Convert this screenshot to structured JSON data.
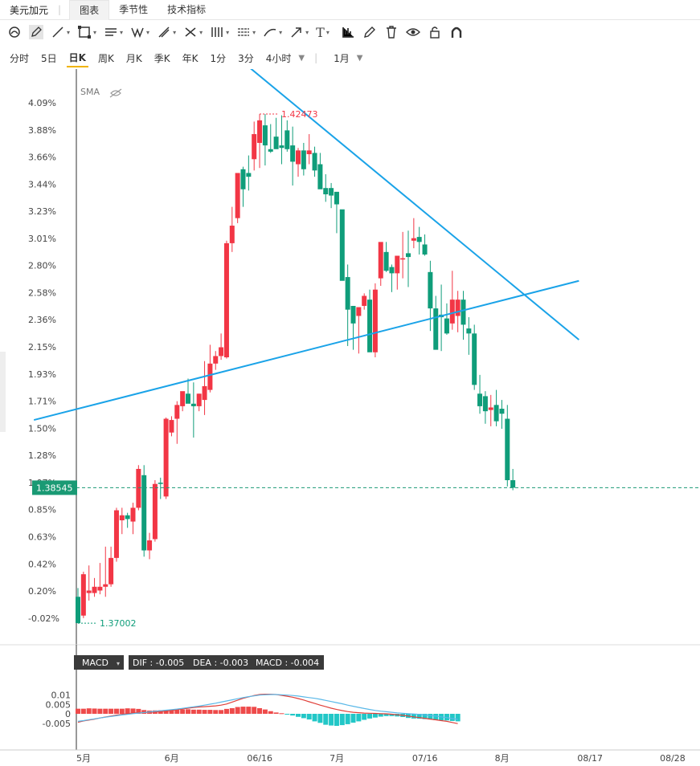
{
  "tabs": {
    "symbol": "美元加元",
    "items": [
      "图表",
      "季节性",
      "技术指标"
    ],
    "active": 0
  },
  "toolbar": {
    "tools": [
      "magnet-icon",
      "pen-icon",
      "line-icon",
      "rectangle-icon",
      "parallel-lines-icon",
      "pattern-icon",
      "fib-icon",
      "measure-icon",
      "gann-icon",
      "channel-icon",
      "brush-icon",
      "arrow-icon",
      "text-icon",
      "chart-type-icon",
      "edit-icon",
      "trash-icon",
      "eye-icon",
      "lock-icon",
      "magnet-u-icon"
    ],
    "text_label": "T"
  },
  "periods": {
    "items": [
      "分时",
      "5日",
      "日K",
      "周K",
      "月K",
      "季K",
      "年K",
      "1分",
      "3分",
      "4小时"
    ],
    "active": "日K",
    "range": "1月"
  },
  "indicators": {
    "sma_label": "SMA"
  },
  "price_panel": {
    "current_price": "1.38545",
    "high_label": "1.42473",
    "low_label": "1.37002",
    "colors": {
      "up": "#f23645",
      "down": "#0f9d7a",
      "line": "#1aa3e8",
      "price_tag": "#1a9a74"
    }
  },
  "macd_panel": {
    "name": "MACD",
    "dif": "DIF : -0.005",
    "dea": "DEA : -0.003",
    "macd": "MACD : -0.004",
    "yticks": [
      "0.01",
      "0.005",
      "0",
      "-0.005"
    ]
  },
  "chart_data": {
    "type": "candlestick",
    "yaxis_ticks": [
      "4.09%",
      "3.88%",
      "3.66%",
      "3.44%",
      "3.23%",
      "3.01%",
      "2.80%",
      "2.58%",
      "2.36%",
      "2.15%",
      "1.93%",
      "1.71%",
      "1.50%",
      "1.28%",
      "1.07%",
      "0.85%",
      "0.63%",
      "0.42%",
      "0.20%",
      "-0.02%"
    ],
    "yrange_pct": [
      -0.02,
      4.09
    ],
    "xaxis_labels": [
      "5月",
      "6月",
      "06/16",
      "7月",
      "07/16",
      "8月",
      "08/17",
      "08/28"
    ],
    "candles_pct": [
      [
        0.15,
        0.22,
        -0.06,
        -0.06
      ],
      [
        0.0,
        0.35,
        -0.02,
        0.33
      ],
      [
        0.18,
        0.4,
        0.12,
        0.2
      ],
      [
        0.18,
        0.3,
        0.15,
        0.23
      ],
      [
        0.2,
        0.42,
        0.17,
        0.23
      ],
      [
        0.23,
        0.55,
        0.15,
        0.25
      ],
      [
        0.25,
        0.55,
        0.23,
        0.46
      ],
      [
        0.46,
        0.86,
        0.43,
        0.84
      ],
      [
        0.76,
        0.86,
        0.65,
        0.8
      ],
      [
        0.8,
        0.82,
        0.7,
        0.77
      ],
      [
        0.75,
        0.9,
        0.65,
        0.86
      ],
      [
        0.86,
        1.2,
        0.84,
        1.17
      ],
      [
        1.12,
        1.2,
        0.47,
        0.52
      ],
      [
        0.52,
        0.66,
        0.45,
        0.6
      ],
      [
        0.61,
        1.08,
        0.59,
        1.05
      ],
      [
        1.06,
        1.1,
        0.93,
        1.05
      ],
      [
        0.95,
        1.58,
        0.93,
        1.57
      ],
      [
        1.46,
        1.59,
        1.43,
        1.56
      ],
      [
        1.57,
        1.71,
        1.37,
        1.68
      ],
      [
        1.67,
        1.72,
        1.63,
        1.79
      ],
      [
        1.77,
        1.89,
        1.7,
        1.69
      ],
      [
        1.69,
        1.86,
        1.42,
        1.67
      ],
      [
        1.67,
        1.77,
        1.63,
        1.77
      ],
      [
        1.72,
        2.03,
        1.6,
        1.83
      ],
      [
        1.8,
        2.16,
        1.78,
        2.01
      ],
      [
        2.01,
        2.11,
        1.96,
        2.07
      ],
      [
        2.07,
        2.25,
        2.04,
        2.14
      ],
      [
        2.06,
        2.99,
        2.05,
        2.97
      ],
      [
        2.97,
        3.26,
        2.9,
        3.11
      ],
      [
        3.17,
        3.48,
        3.13,
        3.53
      ],
      [
        3.56,
        3.58,
        3.26,
        3.4
      ],
      [
        3.53,
        3.67,
        3.39,
        3.5
      ],
      [
        3.64,
        3.94,
        3.55,
        3.84
      ],
      [
        3.77,
        4.0,
        3.57,
        3.95
      ],
      [
        3.91,
        4.0,
        3.59,
        3.75
      ],
      [
        3.72,
        3.92,
        3.69,
        3.7
      ],
      [
        3.82,
        3.97,
        3.75,
        3.72
      ],
      [
        3.75,
        3.99,
        3.6,
        3.73
      ],
      [
        3.87,
        3.95,
        3.7,
        3.72
      ],
      [
        3.75,
        3.9,
        3.43,
        3.62
      ],
      [
        3.6,
        3.73,
        3.5,
        3.71
      ],
      [
        3.71,
        3.77,
        3.51,
        3.56
      ],
      [
        3.68,
        3.84,
        3.6,
        3.71
      ],
      [
        3.69,
        3.74,
        3.5,
        3.55
      ],
      [
        3.6,
        3.69,
        3.51,
        3.4
      ],
      [
        3.41,
        3.52,
        3.3,
        3.36
      ],
      [
        3.41,
        3.45,
        3.25,
        3.35
      ],
      [
        3.38,
        3.35,
        3.05,
        3.28
      ],
      [
        3.24,
        3.18,
        2.85,
        2.67
      ],
      [
        2.7,
        2.8,
        2.15,
        2.44
      ],
      [
        2.47,
        2.43,
        2.12,
        2.33
      ],
      [
        2.39,
        2.39,
        2.09,
        2.46
      ],
      [
        2.47,
        2.57,
        2.44,
        2.55
      ],
      [
        2.52,
        2.6,
        2.11,
        2.1
      ],
      [
        2.1,
        2.65,
        2.06,
        2.6
      ],
      [
        2.69,
        2.85,
        2.63,
        2.98
      ],
      [
        2.9,
        2.98,
        2.74,
        2.75
      ],
      [
        2.78,
        2.8,
        2.58,
        2.73
      ],
      [
        2.73,
        2.85,
        2.6,
        2.87
      ],
      [
        2.84,
        3.06,
        2.69,
        2.85
      ],
      [
        2.89,
        3.07,
        2.62,
        2.86
      ],
      [
        2.99,
        3.17,
        2.93,
        3.01
      ],
      [
        3.02,
        3.1,
        2.88,
        2.98
      ],
      [
        2.96,
        3.04,
        2.87,
        2.88
      ],
      [
        2.74,
        2.83,
        2.27,
        2.45
      ],
      [
        2.45,
        2.55,
        2.22,
        2.12
      ],
      [
        2.4,
        2.64,
        2.11,
        2.38
      ],
      [
        2.37,
        2.49,
        2.24,
        2.25
      ],
      [
        2.33,
        2.75,
        2.28,
        2.52
      ],
      [
        2.39,
        2.59,
        2.26,
        2.52
      ],
      [
        2.52,
        2.59,
        2.2,
        2.32
      ],
      [
        2.29,
        2.38,
        2.08,
        2.25
      ],
      [
        2.25,
        2.32,
        1.8,
        1.84
      ],
      [
        1.77,
        1.92,
        1.61,
        1.67
      ],
      [
        1.75,
        1.79,
        1.53,
        1.63
      ],
      [
        1.64,
        1.76,
        1.51,
        1.66
      ],
      [
        1.68,
        1.8,
        1.51,
        1.55
      ],
      [
        1.65,
        1.72,
        1.49,
        1.61
      ],
      [
        1.57,
        1.68,
        1.03,
        1.08
      ],
      [
        1.08,
        1.17,
        1.0,
        1.02
      ]
    ],
    "trendlines": [
      {
        "name": "descending-resistance",
        "from": {
          "candle": 21,
          "pct": 4.74
        },
        "to": {
          "candle": 91,
          "pct": 2.2
        }
      },
      {
        "name": "ascending-support",
        "from": {
          "candle": -8,
          "pct": 1.56
        },
        "to": {
          "candle": 91,
          "pct": 2.67
        }
      }
    ],
    "macd_hist": [
      0.0027,
      0.0027,
      0.0029,
      0.0028,
      0.0027,
      0.0027,
      0.0027,
      0.0027,
      0.0027,
      0.0029,
      0.0028,
      0.0026,
      0.002,
      0.0017,
      0.0018,
      0.0019,
      0.002,
      0.0022,
      0.0023,
      0.0023,
      0.0024,
      0.0022,
      0.0022,
      0.0021,
      0.0021,
      0.002,
      0.002,
      0.0026,
      0.003,
      0.0036,
      0.0038,
      0.0038,
      0.0037,
      0.003,
      0.0023,
      0.0014,
      0.0007,
      0.0003,
      -0.0002,
      -0.0009,
      -0.0016,
      -0.0023,
      -0.003,
      -0.004,
      -0.0048,
      -0.0058,
      -0.0062,
      -0.0064,
      -0.006,
      -0.0055,
      -0.0047,
      -0.004,
      -0.0032,
      -0.0025,
      -0.002,
      -0.0015,
      -0.0012,
      -0.0012,
      -0.0014,
      -0.0017,
      -0.0022,
      -0.0025,
      -0.0026,
      -0.0028,
      -0.003,
      -0.0034,
      -0.0034,
      -0.0035,
      -0.0038,
      -0.004
    ],
    "macd_dif": [
      -0.0045,
      -0.0038,
      -0.0033,
      -0.0028,
      -0.0022,
      -0.0017,
      -0.0012,
      -0.0007,
      -0.0003,
      0.0001,
      0.0004,
      0.0006,
      0.0007,
      0.0008,
      0.001,
      0.0012,
      0.0014,
      0.0018,
      0.0022,
      0.0026,
      0.003,
      0.0033,
      0.0036,
      0.0038,
      0.004,
      0.0042,
      0.0046,
      0.0052,
      0.0062,
      0.0072,
      0.0082,
      0.009,
      0.0097,
      0.0102,
      0.0104,
      0.0104,
      0.0102,
      0.0098,
      0.0093,
      0.0088,
      0.0081,
      0.0073,
      0.0064,
      0.0055,
      0.0046,
      0.0038,
      0.003,
      0.0023,
      0.0017,
      0.0012,
      0.0008,
      0.0006,
      0.0004,
      0.0003,
      0.0002,
      0.0001,
      0.0,
      -0.0002,
      -0.0005,
      -0.0008,
      -0.0012,
      -0.0016,
      -0.002,
      -0.0024,
      -0.0028,
      -0.0032,
      -0.0036,
      -0.004,
      -0.0046,
      -0.0052
    ],
    "macd_dea": [
      -0.004,
      -0.0036,
      -0.0031,
      -0.0027,
      -0.0022,
      -0.0018,
      -0.0014,
      -0.001,
      -0.0006,
      -0.0003,
      0.0001,
      0.0004,
      0.0007,
      0.001,
      0.0013,
      0.0016,
      0.0019,
      0.0022,
      0.0025,
      0.0029,
      0.0033,
      0.0037,
      0.0041,
      0.0046,
      0.0051,
      0.0056,
      0.0062,
      0.0068,
      0.0074,
      0.008,
      0.0086,
      0.0091,
      0.0095,
      0.0099,
      0.0101,
      0.0102,
      0.0102,
      0.0101,
      0.0099,
      0.0097,
      0.0094,
      0.009,
      0.0086,
      0.0082,
      0.0077,
      0.0071,
      0.0065,
      0.0059,
      0.0053,
      0.0046,
      0.004,
      0.0034,
      0.0028,
      0.0023,
      0.0018,
      0.0014,
      0.0011,
      0.0008,
      0.0005,
      0.0003,
      0.0001,
      -0.0001,
      -0.0003,
      -0.0006,
      -0.0009,
      -0.0012,
      -0.0016,
      -0.002,
      -0.0025,
      -0.003
    ]
  }
}
